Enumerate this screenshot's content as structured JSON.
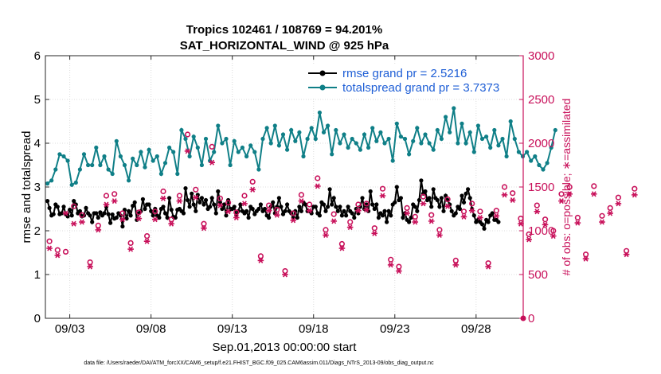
{
  "colors": {
    "rmse": "#000000",
    "spread": "#0f7f87",
    "obs": "#c8105a",
    "legend_text": "#1f5fd6"
  },
  "chart_data": {
    "type": "line",
    "title_line1": "Tropics 102461 / 108769 = 94.201%",
    "title_line2": "SAT_HORIZONTAL_WIND @ 925 hPa",
    "xlabel": "Sep.01,2013 00:00:00 start",
    "ylabel_left": "rmse and totalspread",
    "ylabel_right": "# of obs: o=possible; ∗=assimilated",
    "xlim": [
      1.5,
      30.9
    ],
    "ylim_left": [
      0,
      6
    ],
    "ylim_right": [
      0,
      3000
    ],
    "x_ticks": [
      3,
      8,
      13,
      18,
      23,
      28
    ],
    "x_tick_labels": [
      "09/03",
      "09/08",
      "09/13",
      "09/18",
      "09/23",
      "09/28"
    ],
    "y_ticks_left": [
      0,
      1,
      2,
      3,
      4,
      5,
      6
    ],
    "y_tick_labels_left": [
      "0",
      "1",
      "2",
      "3",
      "4",
      "5",
      "6"
    ],
    "y_ticks_right": [
      0,
      500,
      1000,
      1500,
      2000,
      2500,
      3000
    ],
    "y_tick_labels_right": [
      "0",
      "500",
      "1000",
      "1500",
      "2000",
      "2500",
      "3000"
    ],
    "legend": [
      {
        "label": "rmse grand pr = 2.5216",
        "series": "rmse"
      },
      {
        "label": "totalspread grand pr = 3.7373",
        "series": "totalspread"
      }
    ],
    "legend_position": "top-right",
    "footnote": "data file: /Users/raeder/DAI/ATM_forcXX/CAM6_setup/f.e21.FHIST_BGC.f09_025.CAM6assim.011/Diags_NTrS_2013-09/obs_diag_output.nc",
    "series": [
      {
        "name": "rmse",
        "axis": "left",
        "start": 1.625,
        "step": 0.125,
        "values": [
          2.68,
          2.52,
          2.35,
          2.38,
          2.6,
          2.55,
          2.38,
          2.4,
          2.55,
          2.38,
          2.33,
          2.48,
          2.35,
          2.68,
          2.6,
          2.4,
          2.45,
          2.33,
          2.35,
          2.52,
          2.4,
          2.35,
          2.2,
          2.4,
          2.4,
          2.3,
          2.42,
          2.35,
          2.4,
          2.55,
          2.38,
          2.18,
          2.37,
          2.28,
          2.3,
          2.4,
          2.35,
          2.1,
          2.48,
          2.28,
          2.45,
          2.35,
          2.57,
          2.65,
          2.25,
          2.4,
          2.45,
          2.72,
          2.5,
          2.6,
          2.6,
          2.45,
          2.35,
          2.5,
          2.35,
          2.3,
          2.5,
          2.55,
          2.4,
          2.3,
          2.75,
          2.48,
          2.32,
          2.3,
          2.48,
          2.5,
          2.45,
          2.4,
          2.97,
          2.7,
          2.55,
          2.85,
          2.6,
          2.45,
          2.82,
          2.65,
          2.75,
          2.6,
          2.7,
          2.5,
          2.55,
          2.75,
          2.6,
          2.4,
          2.9,
          2.65,
          2.5,
          2.6,
          2.35,
          2.7,
          2.5,
          2.5,
          2.55,
          2.35,
          2.45,
          2.6,
          2.45,
          2.4,
          2.45,
          2.3,
          2.55,
          2.5,
          2.38,
          2.45,
          2.5,
          2.6,
          2.45,
          2.5,
          2.35,
          2.3,
          2.55,
          2.65,
          2.4,
          2.55,
          2.75,
          2.55,
          2.38,
          2.45,
          2.6,
          2.45,
          2.4,
          2.3,
          2.45,
          2.3,
          2.55,
          2.45,
          2.65,
          2.6,
          2.45,
          2.45,
          2.4,
          2.55,
          2.55,
          2.4,
          2.35,
          2.65,
          2.6,
          2.45,
          2.55,
          2.95,
          2.6,
          2.75,
          2.55,
          2.45,
          2.55,
          2.35,
          2.45,
          2.35,
          2.55,
          2.45,
          2.4,
          2.3,
          2.5,
          2.4,
          2.55,
          2.75,
          2.5,
          2.6,
          2.45,
          2.9,
          2.6,
          2.5,
          2.6,
          2.3,
          2.4,
          2.35,
          2.45,
          2.2,
          2.45,
          2.35,
          2.6,
          2.65,
          3.0,
          2.7,
          2.75,
          2.3,
          2.4,
          2.25,
          2.2,
          2.3,
          2.6,
          2.55,
          2.45,
          2.7,
          3.15,
          2.85,
          2.9,
          2.7,
          2.75,
          2.55,
          2.95,
          2.75,
          2.7,
          2.55,
          2.75,
          2.45,
          2.8,
          2.7,
          2.6,
          2.45,
          2.35,
          2.4,
          2.55,
          2.5,
          2.8,
          2.65,
          2.85,
          2.95,
          2.75,
          2.5,
          2.35,
          2.2,
          2.25,
          2.2,
          2.15,
          2.05,
          2.25,
          2.2,
          2.35,
          2.4,
          2.25,
          2.25,
          2.2
        ]
      },
      {
        "name": "totalspread",
        "axis": "left",
        "start": 1.625,
        "step": 0.25,
        "values": [
          3.08,
          3.15,
          3.4,
          3.75,
          3.7,
          3.6,
          3.05,
          3.1,
          3.4,
          3.75,
          3.5,
          3.5,
          3.9,
          3.5,
          3.7,
          3.4,
          3.3,
          4.05,
          3.7,
          3.5,
          3.15,
          3.65,
          3.5,
          3.8,
          3.45,
          3.85,
          3.6,
          3.7,
          3.3,
          3.55,
          3.9,
          3.8,
          3.3,
          4.3,
          4.1,
          3.7,
          4.15,
          3.9,
          3.5,
          4.1,
          3.6,
          3.8,
          4.4,
          4.0,
          4.1,
          3.5,
          4.05,
          3.8,
          3.9,
          3.7,
          3.95,
          3.8,
          3.4,
          4.1,
          4.35,
          4.0,
          4.4,
          3.95,
          4.2,
          3.85,
          4.3,
          4.05,
          4.25,
          3.7,
          4.1,
          4.35,
          4.1,
          4.7,
          4.25,
          4.4,
          3.75,
          4.3,
          4.0,
          4.2,
          3.9,
          4.1,
          4.0,
          3.85,
          4.2,
          3.9,
          4.35,
          4.05,
          4.25,
          4.0,
          4.1,
          3.6,
          4.45,
          4.15,
          4.1,
          3.75,
          4.05,
          4.35,
          4.0,
          4.2,
          4.0,
          3.85,
          4.3,
          4.1,
          4.6,
          4.25,
          4.8,
          4.0,
          4.45,
          4.0,
          4.25,
          3.8,
          4.4,
          4.1,
          4.15,
          3.9,
          4.3,
          3.95,
          4.1,
          3.7,
          4.5,
          4.1,
          3.8,
          3.7,
          3.8,
          3.6,
          3.7,
          3.5,
          3.4,
          3.55,
          3.9,
          4.3
        ]
      },
      {
        "name": "obs_possible",
        "axis": "right",
        "marker": "o",
        "start": 1.75,
        "step": 0.5,
        "values": [
          880,
          780,
          760,
          1280,
          1180,
          640,
          1060,
          1400,
          1420,
          1200,
          860,
          1210,
          940,
          1220,
          1450,
          1130,
          1400,
          2100,
          1470,
          1080,
          1960,
          1370,
          1320,
          1210,
          1400,
          1560,
          710,
          1290,
          1240,
          540,
          1200,
          1410,
          1300,
          1600,
          1010,
          1190,
          850,
          1100,
          1300,
          1310,
          1030,
          1480,
          670,
          590,
          1260,
          1160,
          1390,
          1180,
          1010,
          1360,
          660,
          1220,
          1310,
          1220,
          630,
          1230,
          1500,
          1430,
          1140,
          960,
          1290,
          1130,
          1000,
          1420,
          1500,
          1150,
          730,
          1510,
          1170,
          1260,
          1380,
          770,
          1480
        ]
      },
      {
        "name": "obs_assimilated",
        "axis": "right",
        "marker": "*",
        "start": 1.75,
        "step": 0.5,
        "values": [
          800,
          720,
          1200,
          1080,
          1100,
          590,
          1010,
          1300,
          1340,
          1130,
          790,
          1140,
          880,
          1130,
          1370,
          1080,
          1340,
          1910,
          1380,
          1030,
          1780,
          1290,
          1220,
          1150,
          1310,
          1470,
          660,
          1230,
          1180,
          500,
          1120,
          1340,
          1230,
          1510,
          950,
          1110,
          800,
          1040,
          1230,
          1240,
          970,
          1400,
          610,
          540,
          1200,
          1100,
          1310,
          1110,
          950,
          1280,
          610,
          1160,
          1230,
          1150,
          590,
          1170,
          1410,
          1350,
          1080,
          900,
          1220,
          1070,
          940,
          1340,
          1420,
          1090,
          680,
          1420,
          1100,
          1200,
          1310,
          730,
          1410
        ]
      }
    ]
  }
}
